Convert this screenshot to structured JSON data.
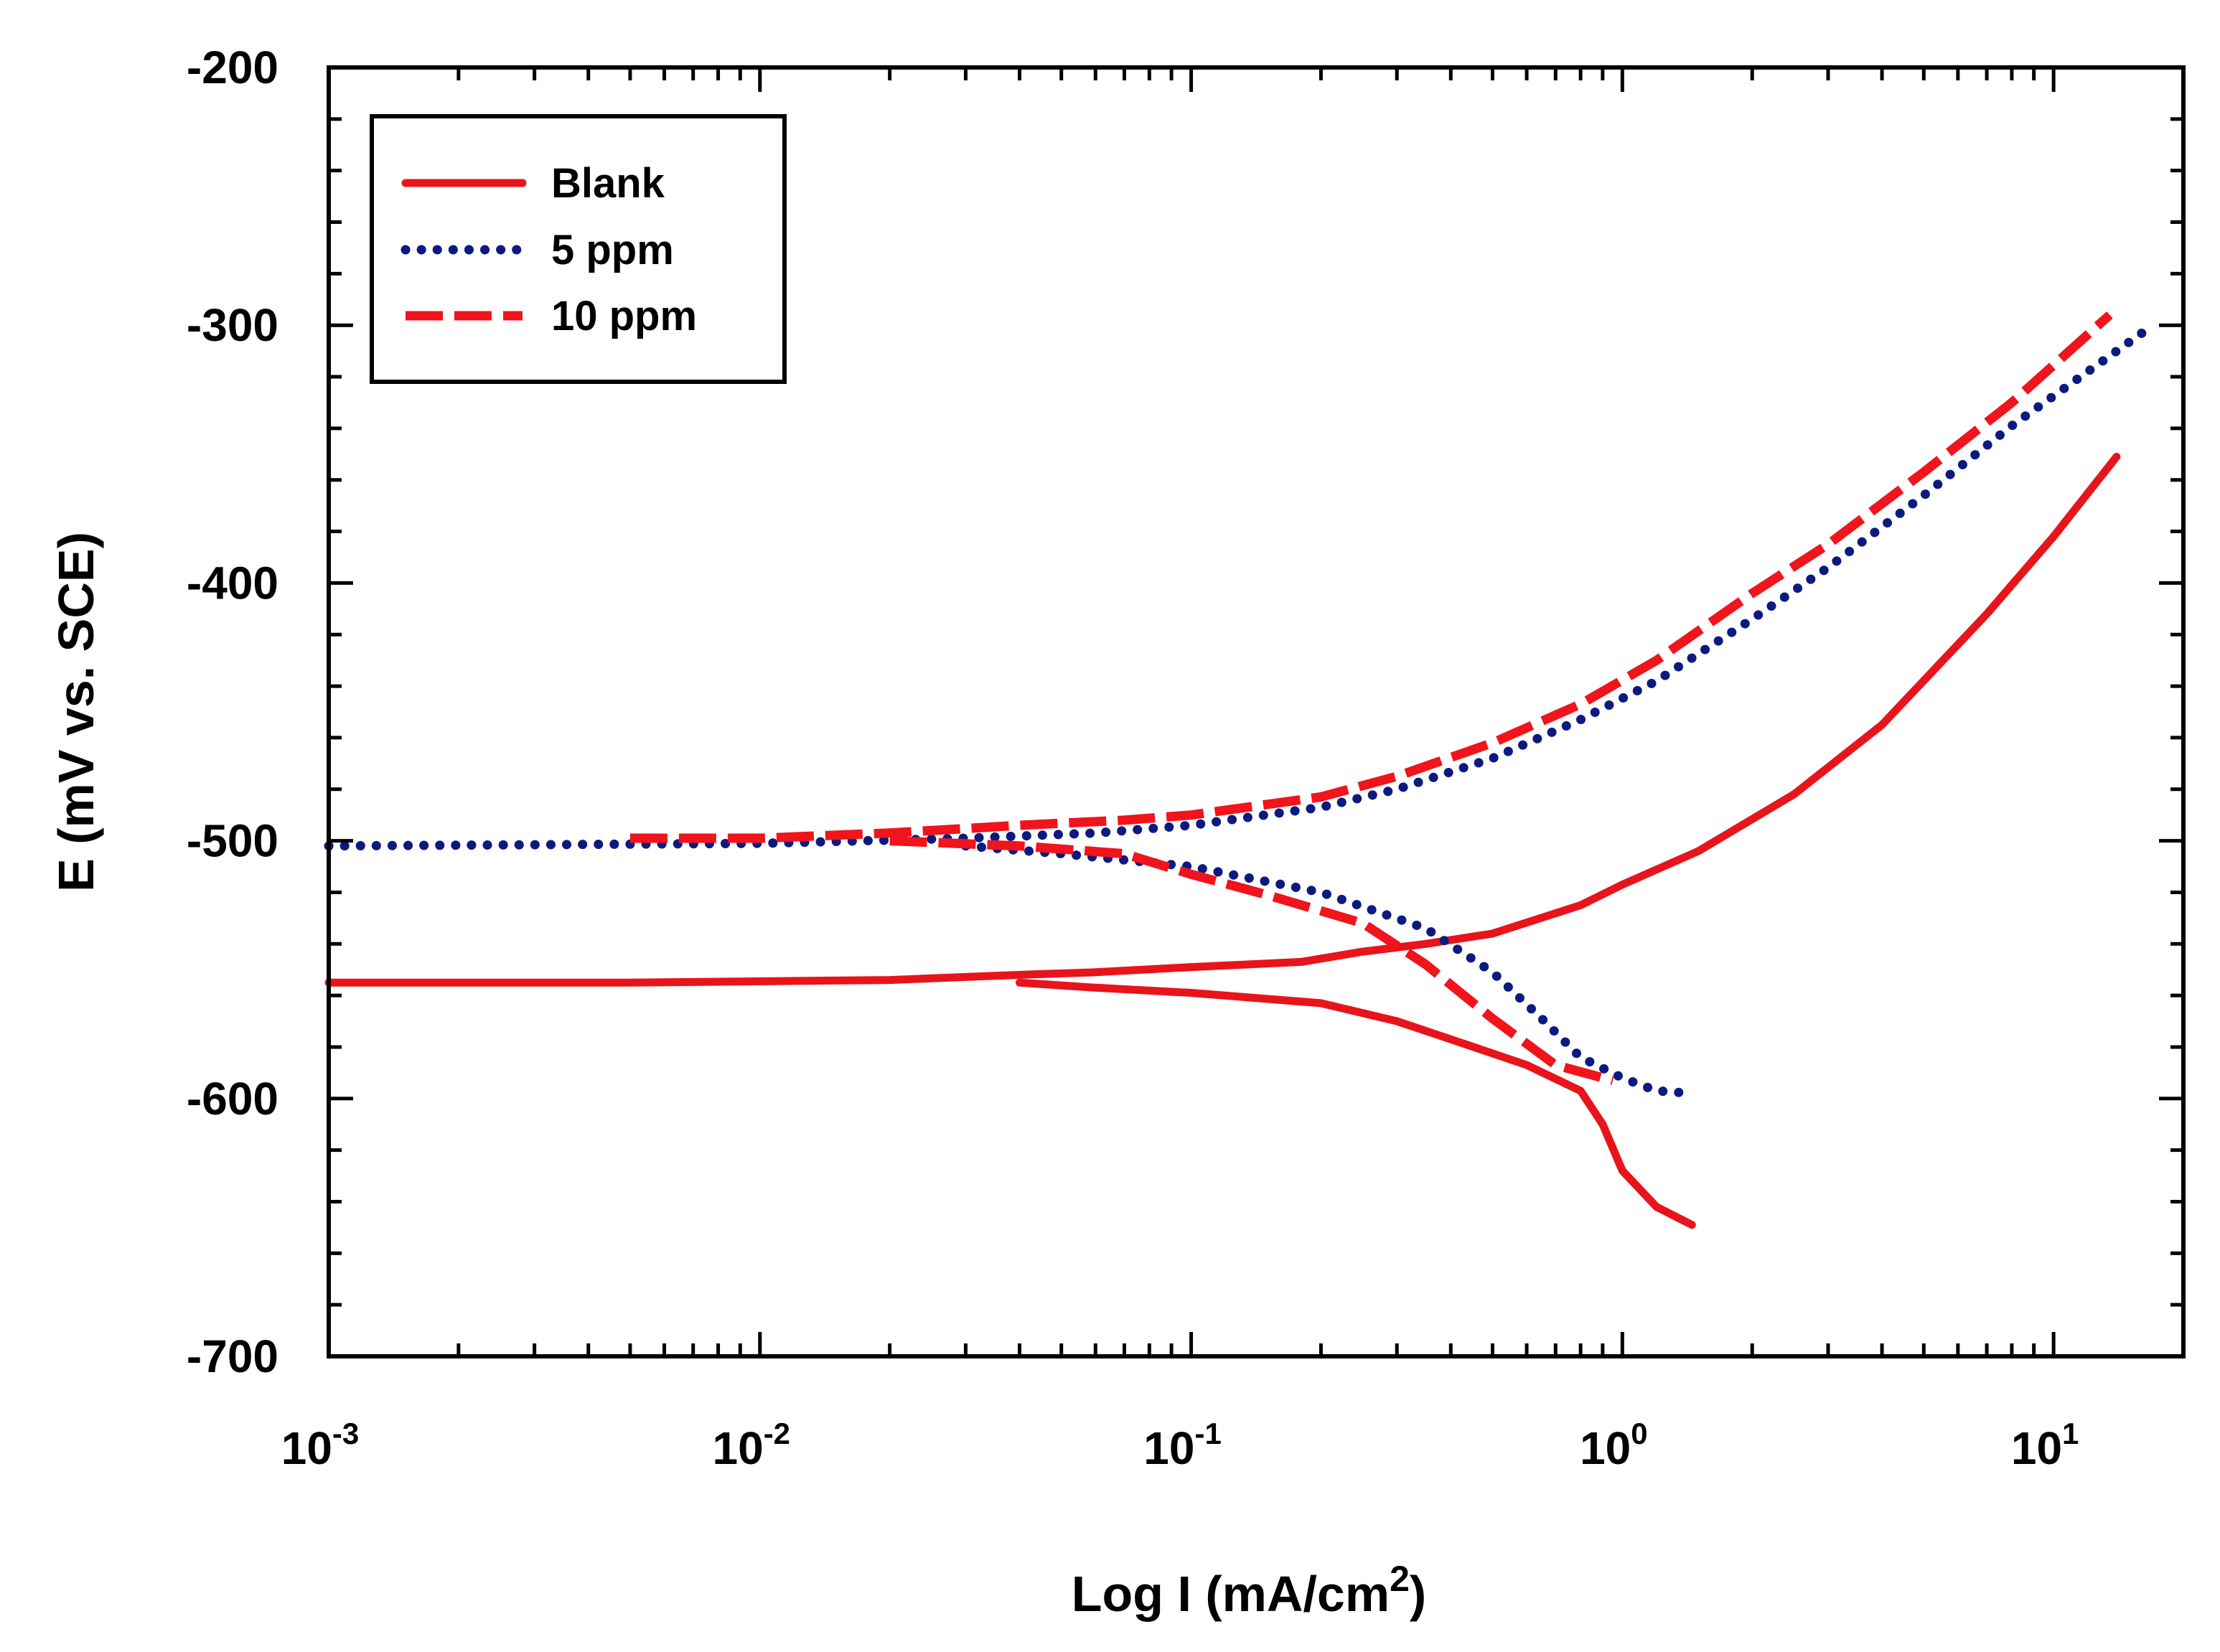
{
  "chart_data": {
    "type": "line",
    "xlabel": {
      "main": "Log I (mA/cm",
      "superscript": "2",
      "suffix": ")"
    },
    "ylabel": "E (mV vs. SCE)",
    "xscale": "log",
    "xlim": [
      0.001,
      20
    ],
    "ylim": [
      -700,
      -200
    ],
    "x_ticks": [
      {
        "value": 0.001,
        "base": "10",
        "exp": "-3"
      },
      {
        "value": 0.01,
        "base": "10",
        "exp": "-2"
      },
      {
        "value": 0.1,
        "base": "10",
        "exp": "-1"
      },
      {
        "value": 1,
        "base": "10",
        "exp": "0"
      },
      {
        "value": 10,
        "base": "10",
        "exp": "1"
      }
    ],
    "y_ticks": [
      {
        "value": -200,
        "label": "-200"
      },
      {
        "value": -300,
        "label": "-300"
      },
      {
        "value": -400,
        "label": "-400"
      },
      {
        "value": -500,
        "label": "-500"
      },
      {
        "value": -600,
        "label": "-600"
      },
      {
        "value": -700,
        "label": "-700"
      }
    ],
    "grid": false,
    "legend_position": "top-left",
    "series": [
      {
        "name": "Blank",
        "color": "#e8141c",
        "style": "solid",
        "branches": [
          {
            "x": [
              0.001,
              0.005,
              0.02,
              0.04,
              0.06,
              0.1,
              0.18,
              0.25,
              0.35,
              0.5,
              0.8,
              1.0,
              1.5,
              2.5,
              4,
              7,
              10,
              14
            ],
            "y": [
              -555,
              -555,
              -554,
              -552,
              -551,
              -549,
              -547,
              -543,
              -540,
              -536,
              -525,
              -517,
              -504,
              -482,
              -455,
              -412,
              -382,
              -351
            ]
          },
          {
            "x": [
              0.04,
              0.06,
              0.1,
              0.2,
              0.3,
              0.4,
              0.6,
              0.8,
              0.9,
              1.0,
              1.2,
              1.45
            ],
            "y": [
              -555,
              -557,
              -559,
              -563,
              -570,
              -577,
              -587,
              -597,
              -610,
              -628,
              -642,
              -649
            ]
          }
        ]
      },
      {
        "name": "5 ppm",
        "color": "#0c1a80",
        "style": "dotted",
        "branches": [
          {
            "x": [
              0.001,
              0.01,
              0.03,
              0.06,
              0.1,
              0.2,
              0.3,
              0.5,
              0.8,
              1.2,
              2,
              3,
              5,
              8,
              12,
              17
            ],
            "y": [
              -502,
              -501,
              -499,
              -497,
              -494,
              -487,
              -480,
              -468,
              -453,
              -438,
              -414,
              -394,
              -366,
              -339,
              -318,
              -300
            ]
          },
          {
            "x": [
              0.03,
              0.05,
              0.1,
              0.2,
              0.35,
              0.5,
              0.65,
              0.8,
              1.0,
              1.2,
              1.45
            ],
            "y": [
              -502,
              -505,
              -510,
              -520,
              -534,
              -551,
              -569,
              -584,
              -592,
              -597,
              -598
            ]
          }
        ]
      },
      {
        "name": "10 ppm",
        "color": "#f0141c",
        "style": "dashed",
        "branches": [
          {
            "x": [
              0.005,
              0.01,
              0.02,
              0.04,
              0.07,
              0.1,
              0.2,
              0.3,
              0.5,
              0.8,
              1.2,
              2,
              3,
              5,
              8,
              13.5
            ],
            "y": [
              -499,
              -499,
              -497,
              -494,
              -492,
              -490,
              -483,
              -475,
              -462,
              -447,
              -430,
              -404,
              -385,
              -357,
              -330,
              -296
            ]
          },
          {
            "x": [
              0.02,
              0.04,
              0.07,
              0.1,
              0.15,
              0.25,
              0.35,
              0.5,
              0.7,
              0.95
            ],
            "y": [
              -500,
              -502,
              -505,
              -513,
              -521,
              -532,
              -548,
              -569,
              -587,
              -593
            ]
          }
        ]
      }
    ]
  }
}
